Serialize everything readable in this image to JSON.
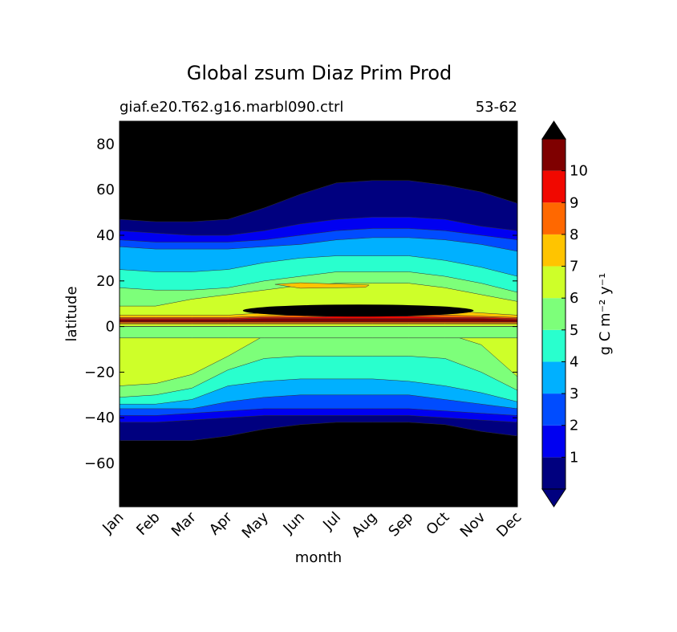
{
  "chart_data": {
    "type": "heatmap",
    "title": "Global zsum Diaz Prim Prod",
    "subtitle_left": "giaf.e20.T62.g16.marbl090.ctrl",
    "subtitle_right": "53-62",
    "xlabel": "month",
    "ylabel": "latitude",
    "x_categories": [
      "Jan",
      "Feb",
      "Mar",
      "Apr",
      "May",
      "Jun",
      "Jul",
      "Aug",
      "Sep",
      "Oct",
      "Nov",
      "Dec"
    ],
    "ylim": [
      -79,
      90
    ],
    "y_ticks": [
      {
        "value": 80,
        "label": "80"
      },
      {
        "value": 60,
        "label": "60"
      },
      {
        "value": 40,
        "label": "40"
      },
      {
        "value": 20,
        "label": "20"
      },
      {
        "value": 0,
        "label": "0"
      },
      {
        "value": -20,
        "label": "−20"
      },
      {
        "value": -40,
        "label": "−40"
      },
      {
        "value": -60,
        "label": "−60"
      }
    ],
    "colorbar": {
      "label": "g C m⁻² y⁻¹",
      "levels": [
        0,
        1,
        2,
        3,
        4,
        5,
        6,
        7,
        8,
        9,
        10,
        11
      ],
      "tick_labels": [
        "1",
        "2",
        "3",
        "4",
        "5",
        "6",
        "7",
        "8",
        "9",
        "10"
      ],
      "extend": "both",
      "colors": [
        "#00007f",
        "#0000f1",
        "#004cff",
        "#00b0ff",
        "#29ffce",
        "#7dff7a",
        "#ceff29",
        "#ffc400",
        "#ff6800",
        "#f10800",
        "#7f0000"
      ],
      "under_color": "#00007f",
      "over_color": "#000000"
    },
    "bands_north": {
      "months": [
        1,
        2,
        3,
        4,
        5,
        6,
        7,
        8,
        9,
        10,
        11,
        12
      ],
      "edge_0": [
        47,
        46,
        46,
        47,
        52,
        58,
        63,
        64,
        64,
        62,
        59,
        54
      ],
      "edge_1": [
        42,
        41,
        40,
        40,
        42,
        45,
        47,
        48,
        48,
        47,
        44,
        42
      ],
      "edge_2": [
        38,
        37,
        37,
        37,
        38,
        40,
        42,
        43,
        43,
        42,
        40,
        38
      ],
      "edge_3": [
        35,
        34,
        34,
        34,
        35,
        36,
        38,
        39,
        39,
        38,
        36,
        33
      ],
      "edge_4": [
        25,
        24,
        24,
        25,
        28,
        30,
        31,
        31,
        31,
        29,
        26,
        22
      ],
      "edge_5": [
        17,
        16,
        16,
        17,
        20,
        22,
        24,
        24,
        24,
        22,
        19,
        15
      ],
      "edge_6": [
        9,
        9,
        12,
        14,
        16,
        18,
        19,
        19,
        19,
        17,
        14,
        11
      ],
      "edge_7": [
        5,
        5,
        5,
        5,
        6,
        7,
        8,
        8,
        8,
        7,
        6,
        5
      ],
      "edge_8": [
        4,
        4,
        4,
        4,
        4.5,
        5,
        5.5,
        5.5,
        5.5,
        5,
        4.5,
        4
      ],
      "edge_9": [
        3.5,
        3.5,
        3.5,
        3.5,
        4,
        4,
        4.5,
        4.5,
        4.5,
        4,
        4,
        3.5
      ],
      "edge_10": [
        3,
        3,
        3,
        3,
        3.5,
        3.5,
        3.5,
        3.5,
        3.5,
        3.5,
        3.5,
        3
      ],
      "edge_11": [
        2,
        2,
        2,
        2,
        2,
        2,
        2,
        2,
        2,
        2,
        2,
        2
      ]
    },
    "bands_south": {
      "months": [
        1,
        2,
        3,
        4,
        5,
        6,
        7,
        8,
        9,
        10,
        11,
        12
      ],
      "edge_5": [
        -5,
        -5,
        -5,
        -5,
        -5,
        -5,
        -5,
        -5,
        -5,
        -5,
        -5,
        -5
      ],
      "edge_6": [
        -26,
        -25,
        -21,
        -13,
        -4,
        -3,
        -3,
        -3,
        -3,
        -3,
        -8,
        -22
      ],
      "edge_5b": [
        -31,
        -30,
        -27,
        -19,
        -14,
        -13,
        -13,
        -13,
        -13,
        -14,
        -20,
        -28
      ],
      "edge_4": [
        -34,
        -34,
        -32,
        -26,
        -24,
        -23,
        -23,
        -23,
        -24,
        -26,
        -29,
        -33
      ],
      "edge_3": [
        -36,
        -36,
        -36,
        -33,
        -31,
        -30,
        -30,
        -30,
        -30,
        -32,
        -34,
        -36
      ],
      "edge_2": [
        -39,
        -39,
        -38,
        -37,
        -36,
        -36,
        -36,
        -36,
        -36,
        -37,
        -38,
        -39
      ],
      "edge_1": [
        -42,
        -42,
        -41,
        -40,
        -39,
        -39,
        -39,
        -39,
        -39,
        -40,
        -41,
        -42
      ],
      "edge_0": [
        -50,
        -50,
        -50,
        -48,
        -45,
        -43,
        -42,
        -42,
        -42,
        -43,
        -46,
        -48
      ]
    }
  }
}
